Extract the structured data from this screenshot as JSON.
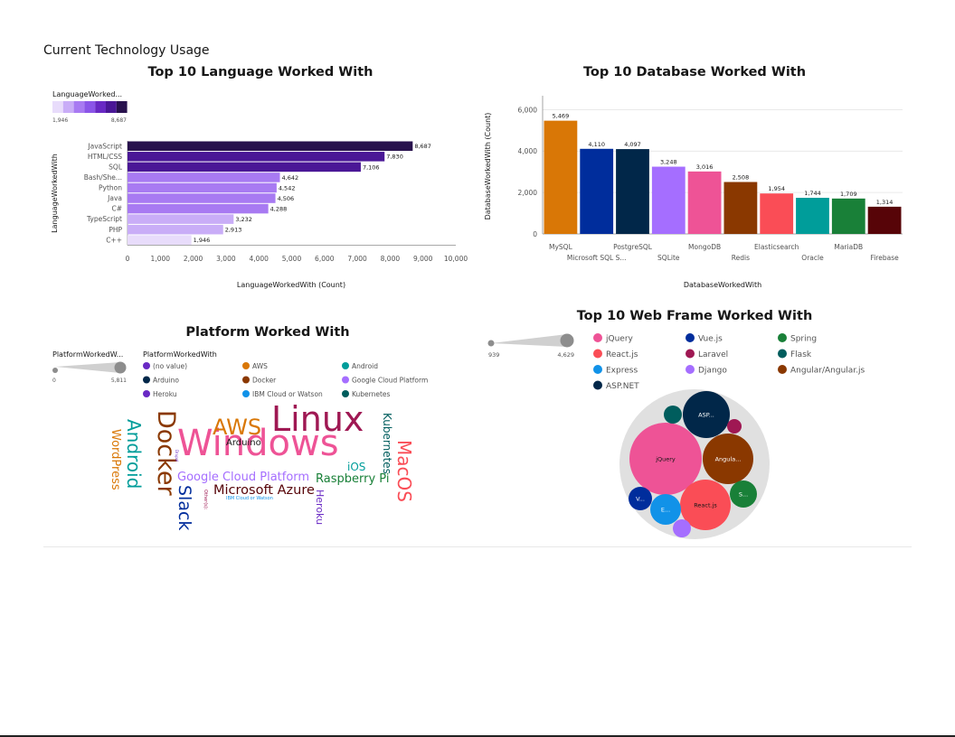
{
  "page": {
    "title": "Current Technology Usage"
  },
  "colors": {
    "purples": [
      "#e8dcfb",
      "#c9adf7",
      "#a87af2",
      "#8b55e8",
      "#6929c4",
      "#4a1796",
      "#28114d"
    ],
    "db_bars": [
      "#d97706",
      "#002d9c",
      "#012749",
      "#a56eff",
      "#ee5396",
      "#8a3800",
      "#fa4d56",
      "#009d9a",
      "#198038",
      "#570408"
    ],
    "webframe": [
      "#ee5396",
      "#002d9c",
      "#198038",
      "#fa4d56",
      "#9f1853",
      "#005d5d",
      "#1192e8",
      "#a56eff",
      "#8a3800",
      "#012749"
    ],
    "platform": [
      "#6929c4",
      "#d97706",
      "#009d9a",
      "#012749",
      "#8a3800",
      "#a56eff",
      "#6929c4",
      "#1192e8",
      "#005d5d"
    ]
  },
  "chart_data": [
    {
      "type": "bar",
      "orientation": "horizontal",
      "title": "Top 10 Language Worked With",
      "xlabel": "LanguageWorkedWith (Count)",
      "ylabel": "LanguageWorkedWith",
      "categories": [
        "JavaScript",
        "HTML/CSS",
        "SQL",
        "Bash/She...",
        "Python",
        "Java",
        "C#",
        "TypeScript",
        "PHP",
        "C++"
      ],
      "values": [
        8687,
        7830,
        7106,
        4642,
        4542,
        4506,
        4288,
        3232,
        2913,
        1946
      ],
      "value_labels": [
        "8,687",
        "7,830",
        "7,106",
        "4,642",
        "4,542",
        "4,506",
        "4,288",
        "3,232",
        "2,913",
        "1,946"
      ],
      "xlim": [
        0,
        10000
      ],
      "xticks": [
        "0",
        "1,000",
        "2,000",
        "3,000",
        "4,000",
        "5,000",
        "6,000",
        "7,000",
        "8,000",
        "9,000",
        "10,000"
      ],
      "legend": {
        "title": "LanguageWorked...",
        "min_label": "1,946",
        "max_label": "8,687"
      }
    },
    {
      "type": "bar",
      "title": "Top 10 Database Worked With",
      "xlabel": "DatabaseWorkedWith",
      "ylabel": "DatabaseWorkedWith (Count)",
      "categories": [
        "MySQL",
        "Microsoft SQL S...",
        "PostgreSQL",
        "SQLite",
        "MongoDB",
        "Redis",
        "Elasticsearch",
        "Oracle",
        "MariaDB",
        "Firebase"
      ],
      "values": [
        5469,
        4110,
        4097,
        3248,
        3016,
        2508,
        1954,
        1744,
        1709,
        1314
      ],
      "value_labels": [
        "5,469",
        "4,110",
        "4,097",
        "3,248",
        "3,016",
        "2,508",
        "1,954",
        "1,744",
        "1,709",
        "1,314"
      ],
      "ylim": [
        0,
        6500
      ],
      "yticks": [
        "0",
        "2,000",
        "4,000",
        "6,000"
      ]
    },
    {
      "type": "wordcloud",
      "title": "Platform Worked With",
      "size_legend": {
        "title": "PlatformWorkedW...",
        "min_label": "0",
        "max_label": "5,811"
      },
      "color_legend": {
        "title": "PlatformWorkedWith",
        "items": [
          "(no value)",
          "AWS",
          "Android",
          "Arduino",
          "Docker",
          "Google Cloud Platform",
          "Heroku",
          "IBM Cloud or Watson",
          "Kubernetes"
        ]
      },
      "words": [
        "Linux",
        "Windows",
        "Docker",
        "Android",
        "AWS",
        "MacOS",
        "Kubernetes",
        "WordPress",
        "Slack",
        "Google Cloud Platform",
        "Microsoft Azure",
        "Raspberry Pi",
        "iOS",
        "Heroku",
        "Arduino",
        "IBM Cloud or Watson",
        "Other(s):",
        "Drupal"
      ]
    },
    {
      "type": "bubble",
      "title": "Top 10 Web Frame Worked With",
      "size_legend": {
        "min_label": "939",
        "max_label": "4,629"
      },
      "legend": [
        "jQuery",
        "Vue.js",
        "Spring",
        "React.js",
        "Laravel",
        "Flask",
        "Express",
        "Django",
        "Angular/Angular.js",
        "ASP.NET"
      ],
      "bubble_labels": [
        "jQuery",
        "ASP...",
        "Angula...",
        "React.js",
        "S...",
        "E...",
        "V..."
      ]
    }
  ]
}
